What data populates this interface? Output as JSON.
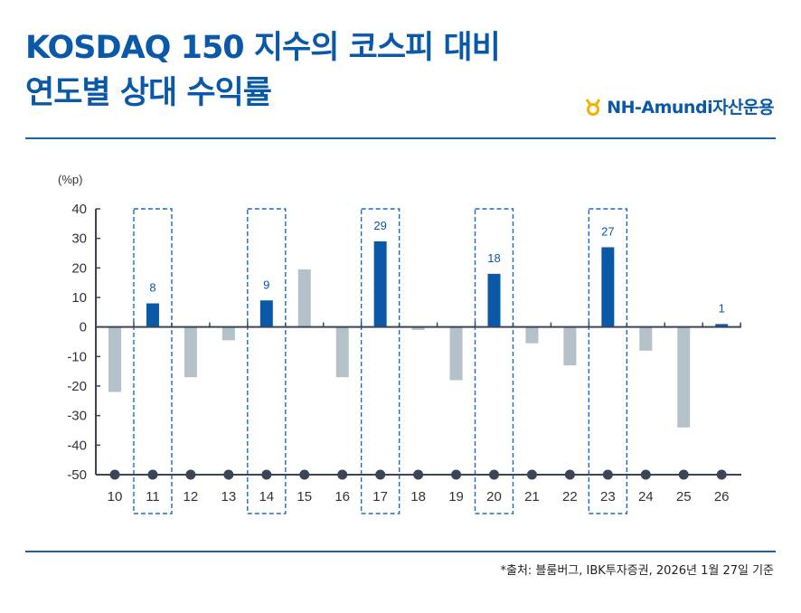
{
  "title": {
    "line1": "KOSDAQ 150 지수의 코스피 대비",
    "line2": "연도별 상대 수익률"
  },
  "logo": {
    "text": "NH-Amundi자산운용",
    "icon": "nh-logo-icon"
  },
  "source": "*출처: 블룸버그, IBK투자증권, 2026년 1월 27일 기준",
  "colors": {
    "title": "#0a58a8",
    "highlight_bar": "#0a58a8",
    "normal_bar": "#b4c1c8",
    "axis": "#3a4558",
    "box": "#1a6bc4"
  },
  "chart_data": {
    "type": "bar",
    "ylabel": "(%p)",
    "ylim": [
      -50,
      40
    ],
    "yticks": [
      40,
      30,
      20,
      10,
      0,
      -10,
      -20,
      -30,
      -40,
      -50
    ],
    "categories": [
      "10",
      "11",
      "12",
      "13",
      "14",
      "15",
      "16",
      "17",
      "18",
      "19",
      "20",
      "21",
      "22",
      "23",
      "24",
      "25",
      "26"
    ],
    "values": [
      -22,
      8,
      -17,
      -4.5,
      9,
      19.5,
      -17,
      29,
      -1,
      -18,
      18,
      -5.5,
      -13,
      27,
      -8,
      -34,
      1
    ],
    "highlighted": [
      "11",
      "14",
      "17",
      "20",
      "23",
      "26"
    ],
    "data_labels": {
      "11": "8",
      "14": "9",
      "17": "29",
      "20": "18",
      "23": "27",
      "26": "1"
    },
    "boxed": [
      "11",
      "14",
      "17",
      "20",
      "23"
    ],
    "grid": false
  }
}
